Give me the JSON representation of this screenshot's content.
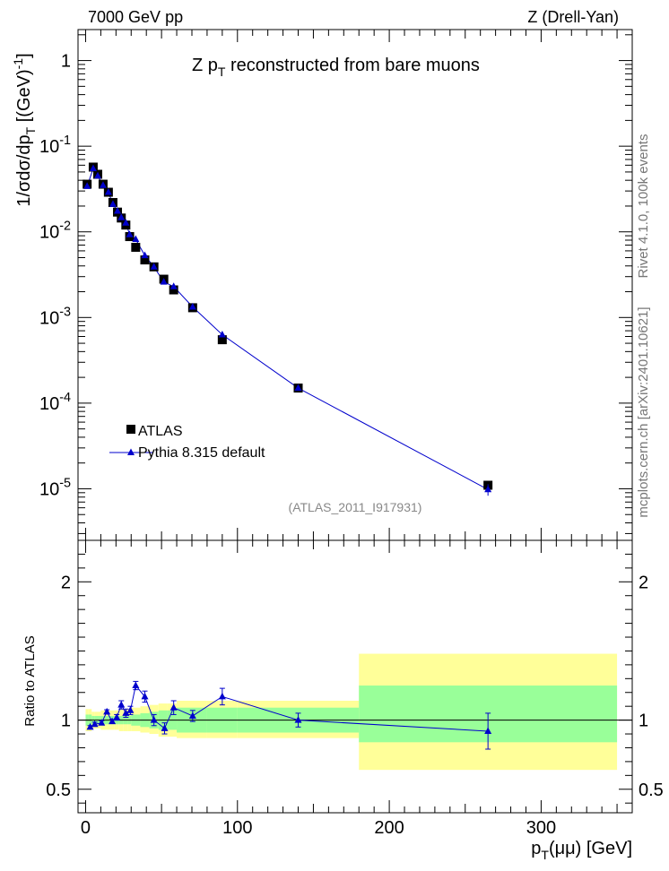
{
  "header": {
    "energy": "7000 GeV pp",
    "process": "Z (Drell-Yan)"
  },
  "side_texts": {
    "rivet": "Rivet 4.1.0,  100k events",
    "mcplots": "mcplots.cern.ch [arXiv:2401.10621]"
  },
  "chart_data": [
    {
      "type": "scatter",
      "title": "Z p_T reconstructed from bare muons",
      "ylabel": "1/σdσ/dp_T [(GeV)^-1]",
      "xlabel": "",
      "yscale": "log",
      "xlim": [
        -5,
        360
      ],
      "ylim": [
        2.5e-06,
        2.3
      ],
      "annotation": "(ATLAS_2011_I917931)",
      "y_tick_labels": [
        "10^-5",
        "10^-4",
        "10^-3",
        "10^-2",
        "10^-1",
        "1"
      ],
      "legend": {
        "position": "bottom-left",
        "entries": [
          "ATLAS",
          "Pythia 8.315 default"
        ]
      },
      "x": [
        1,
        5,
        8,
        11.5,
        15,
        18,
        21,
        23.5,
        26.5,
        29,
        33,
        39,
        45,
        51.5,
        58,
        70.5,
        90,
        140,
        265
      ],
      "series": [
        {
          "name": "ATLAS",
          "marker": "square",
          "values": [
            0.036,
            0.057,
            0.047,
            0.036,
            0.029,
            0.022,
            0.017,
            0.0145,
            0.012,
            0.0088,
            0.0066,
            0.0047,
            0.0039,
            0.0028,
            0.0021,
            0.0013,
            0.00055,
            0.00015,
            1.1e-05
          ]
        },
        {
          "name": "Pythia 8.315 default",
          "marker": "triangle",
          "values": [
            0.034,
            0.055,
            0.045,
            0.035,
            0.029,
            0.021,
            0.0175,
            0.0147,
            0.0127,
            0.0093,
            0.0082,
            0.0053,
            0.0039,
            0.0026,
            0.0023,
            0.00133,
            0.00063,
            0.00015,
            9.8e-06
          ],
          "err_low": [
            0,
            0,
            0,
            0,
            0,
            0,
            0,
            0,
            0,
            0,
            0,
            0,
            0,
            0,
            0,
            0,
            0,
            0,
            1.5e-06
          ],
          "err_high": [
            0,
            0,
            0,
            0,
            0,
            0,
            0,
            0,
            0,
            0,
            0,
            0,
            0,
            0,
            0,
            0,
            0,
            0,
            1.5e-06
          ]
        }
      ]
    },
    {
      "type": "scatter",
      "title": "",
      "ylabel": "Ratio to ATLAS",
      "xlabel": "p_T(μμ) [GeV]",
      "xlim": [
        -5,
        360
      ],
      "ylim": [
        0.33,
        2.3
      ],
      "x_tick_labels": [
        "0",
        "100",
        "200",
        "300"
      ],
      "y_tick_labels": [
        "0.5",
        "1",
        "2"
      ],
      "reference_line": 1,
      "uncertainty_bands": {
        "edges": [
          0,
          2,
          4,
          6,
          8,
          10,
          13,
          16,
          19,
          22,
          25,
          28,
          30,
          36,
          42,
          48,
          54,
          60,
          80,
          100,
          180,
          350
        ],
        "inner_low": [
          0.96,
          0.96,
          0.97,
          0.97,
          0.97,
          0.97,
          0.97,
          0.97,
          0.97,
          0.97,
          0.97,
          0.97,
          0.96,
          0.95,
          0.94,
          0.93,
          0.93,
          0.91,
          0.91,
          0.91,
          0.84
        ],
        "inner_high": [
          1.04,
          1.04,
          1.03,
          1.03,
          1.03,
          1.03,
          1.03,
          1.03,
          1.03,
          1.03,
          1.03,
          1.03,
          1.04,
          1.05,
          1.06,
          1.07,
          1.07,
          1.09,
          1.09,
          1.09,
          1.25
        ],
        "outer_low": [
          0.92,
          0.92,
          0.94,
          0.94,
          0.94,
          0.93,
          0.93,
          0.93,
          0.93,
          0.92,
          0.92,
          0.92,
          0.92,
          0.91,
          0.9,
          0.88,
          0.88,
          0.87,
          0.87,
          0.87,
          0.64
        ],
        "outer_high": [
          1.08,
          1.08,
          1.06,
          1.06,
          1.06,
          1.07,
          1.07,
          1.07,
          1.07,
          1.08,
          1.08,
          1.08,
          1.09,
          1.1,
          1.11,
          1.12,
          1.12,
          1.14,
          1.14,
          1.14,
          1.48
        ]
      },
      "x": [
        3,
        6,
        10.5,
        14,
        17.5,
        20.5,
        23.5,
        26.5,
        29.5,
        33,
        39,
        45,
        52,
        58,
        70.5,
        90,
        140,
        265
      ],
      "series": [
        {
          "name": "Pythia 8.315 default / ATLAS",
          "values": [
            0.95,
            0.97,
            0.98,
            1.06,
            0.99,
            1.02,
            1.11,
            1.05,
            1.07,
            1.25,
            1.17,
            1.0,
            0.94,
            1.09,
            1.03,
            1.17,
            1.0,
            0.92
          ],
          "err_low": [
            0.01,
            0.015,
            0.015,
            0.015,
            0.015,
            0.02,
            0.03,
            0.03,
            0.03,
            0.03,
            0.04,
            0.04,
            0.04,
            0.05,
            0.04,
            0.06,
            0.05,
            0.13
          ],
          "err_high": [
            0.01,
            0.015,
            0.015,
            0.015,
            0.015,
            0.02,
            0.03,
            0.03,
            0.03,
            0.03,
            0.04,
            0.04,
            0.04,
            0.05,
            0.04,
            0.06,
            0.05,
            0.13
          ]
        }
      ]
    }
  ]
}
